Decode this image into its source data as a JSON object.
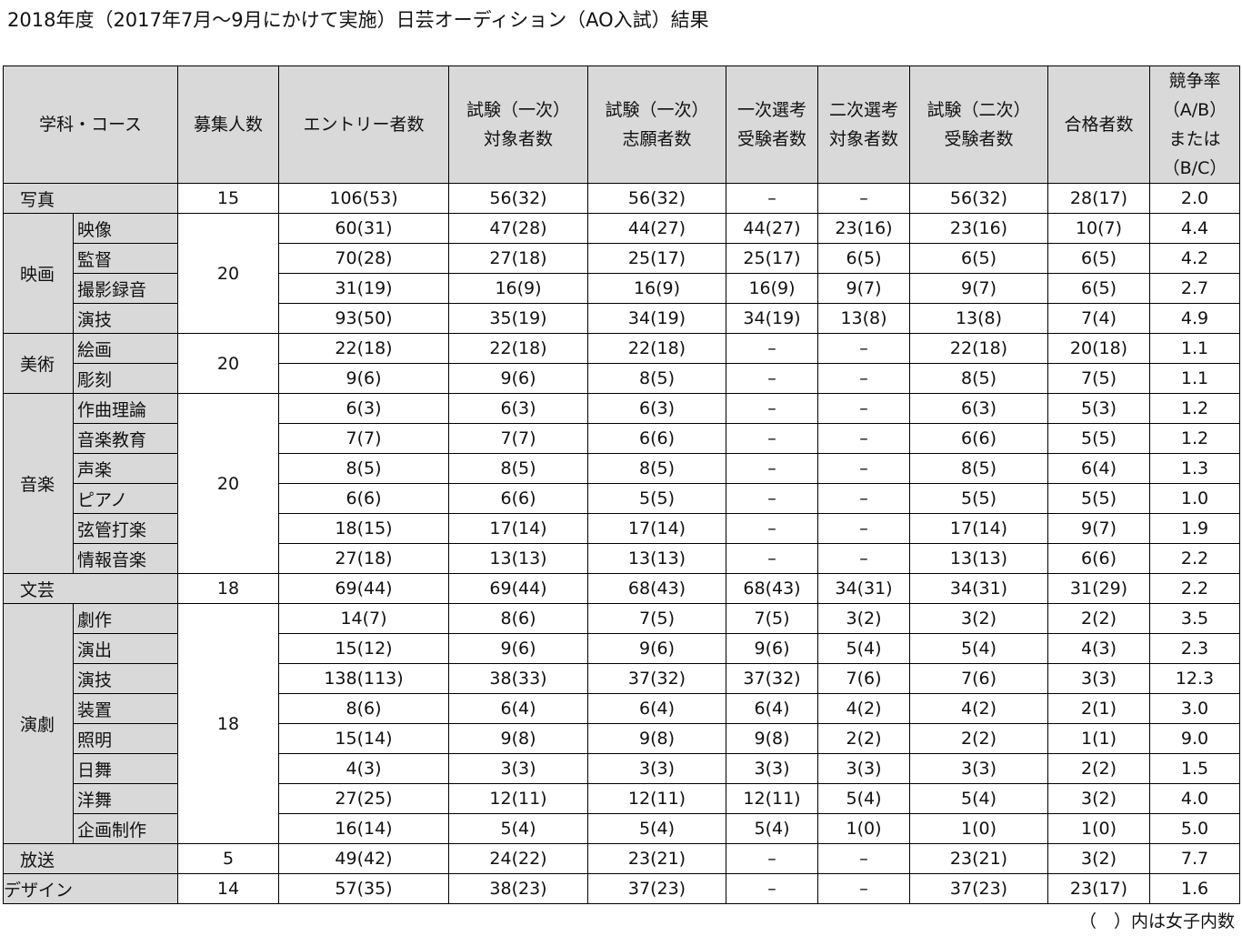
{
  "title": "2018年度（2017年7月～9月にかけて実施）日芸オーディション（AO入試）結果",
  "headers": {
    "dept": "学科・コース",
    "quota": "募集人数",
    "entry": "エントリー者数",
    "exam1_target": [
      "試験（一次）",
      "対象者数"
    ],
    "exam1_apply": [
      "試験（一次）",
      "志願者数"
    ],
    "sel1": [
      "一次選考",
      "受験者数"
    ],
    "sel2": [
      "二次選考",
      "対象者数"
    ],
    "exam2": [
      "試験（二次）",
      "受験者数"
    ],
    "passed": "合格者数",
    "ratio": [
      "競争率",
      "（A/B）",
      "または",
      "（B/C）"
    ]
  },
  "departments": [
    {
      "name": "写真",
      "quota": "15",
      "courses": [
        {
          "name": "",
          "cells": [
            "106(53)",
            "56(32)",
            "56(32)",
            "–",
            "–",
            "56(32)",
            "28(17)",
            "2.0"
          ]
        }
      ]
    },
    {
      "name": "映画",
      "quota": "20",
      "courses": [
        {
          "name": "映像",
          "cells": [
            "60(31)",
            "47(28)",
            "44(27)",
            "44(27)",
            "23(16)",
            "23(16)",
            "10(7)",
            "4.4"
          ]
        },
        {
          "name": "監督",
          "cells": [
            "70(28)",
            "27(18)",
            "25(17)",
            "25(17)",
            "6(5)",
            "6(5)",
            "6(5)",
            "4.2"
          ]
        },
        {
          "name": "撮影録音",
          "cells": [
            "31(19)",
            "16(9)",
            "16(9)",
            "16(9)",
            "9(7)",
            "9(7)",
            "6(5)",
            "2.7"
          ]
        },
        {
          "name": "演技",
          "cells": [
            "93(50)",
            "35(19)",
            "34(19)",
            "34(19)",
            "13(8)",
            "13(8)",
            "7(4)",
            "4.9"
          ]
        }
      ]
    },
    {
      "name": "美術",
      "quota": "20",
      "courses": [
        {
          "name": "絵画",
          "cells": [
            "22(18)",
            "22(18)",
            "22(18)",
            "–",
            "–",
            "22(18)",
            "20(18)",
            "1.1"
          ]
        },
        {
          "name": "彫刻",
          "cells": [
            "9(6)",
            "9(6)",
            "8(5)",
            "–",
            "–",
            "8(5)",
            "7(5)",
            "1.1"
          ]
        }
      ]
    },
    {
      "name": "音楽",
      "quota": "20",
      "courses": [
        {
          "name": "作曲理論",
          "cells": [
            "6(3)",
            "6(3)",
            "6(3)",
            "–",
            "–",
            "6(3)",
            "5(3)",
            "1.2"
          ]
        },
        {
          "name": "音楽教育",
          "cells": [
            "7(7)",
            "7(7)",
            "6(6)",
            "–",
            "–",
            "6(6)",
            "5(5)",
            "1.2"
          ]
        },
        {
          "name": "声楽",
          "cells": [
            "8(5)",
            "8(5)",
            "8(5)",
            "–",
            "–",
            "8(5)",
            "6(4)",
            "1.3"
          ]
        },
        {
          "name": "ピアノ",
          "cells": [
            "6(6)",
            "6(6)",
            "5(5)",
            "–",
            "–",
            "5(5)",
            "5(5)",
            "1.0"
          ]
        },
        {
          "name": "弦管打楽",
          "cells": [
            "18(15)",
            "17(14)",
            "17(14)",
            "–",
            "–",
            "17(14)",
            "9(7)",
            "1.9"
          ]
        },
        {
          "name": "情報音楽",
          "cells": [
            "27(18)",
            "13(13)",
            "13(13)",
            "–",
            "–",
            "13(13)",
            "6(6)",
            "2.2"
          ]
        }
      ]
    },
    {
      "name": "文芸",
      "quota": "18",
      "courses": [
        {
          "name": "",
          "cells": [
            "69(44)",
            "69(44)",
            "68(43)",
            "68(43)",
            "34(31)",
            "34(31)",
            "31(29)",
            "2.2"
          ]
        }
      ]
    },
    {
      "name": "演劇",
      "quota": "18",
      "courses": [
        {
          "name": "劇作",
          "cells": [
            "14(7)",
            "8(6)",
            "7(5)",
            "7(5)",
            "3(2)",
            "3(2)",
            "2(2)",
            "3.5"
          ]
        },
        {
          "name": "演出",
          "cells": [
            "15(12)",
            "9(6)",
            "9(6)",
            "9(6)",
            "5(4)",
            "5(4)",
            "4(3)",
            "2.3"
          ]
        },
        {
          "name": "演技",
          "cells": [
            "138(113)",
            "38(33)",
            "37(32)",
            "37(32)",
            "7(6)",
            "7(6)",
            "3(3)",
            "12.3"
          ]
        },
        {
          "name": "装置",
          "cells": [
            "8(6)",
            "6(4)",
            "6(4)",
            "6(4)",
            "4(2)",
            "4(2)",
            "2(1)",
            "3.0"
          ]
        },
        {
          "name": "照明",
          "cells": [
            "15(14)",
            "9(8)",
            "9(8)",
            "9(8)",
            "2(2)",
            "2(2)",
            "1(1)",
            "9.0"
          ]
        },
        {
          "name": "日舞",
          "cells": [
            "4(3)",
            "3(3)",
            "3(3)",
            "3(3)",
            "3(3)",
            "3(3)",
            "2(2)",
            "1.5"
          ]
        },
        {
          "name": "洋舞",
          "cells": [
            "27(25)",
            "12(11)",
            "12(11)",
            "12(11)",
            "5(4)",
            "5(4)",
            "3(2)",
            "4.0"
          ]
        },
        {
          "name": "企画制作",
          "cells": [
            "16(14)",
            "5(4)",
            "5(4)",
            "5(4)",
            "1(0)",
            "1(0)",
            "1(0)",
            "5.0"
          ]
        }
      ]
    },
    {
      "name": "放送",
      "quota": "5",
      "courses": [
        {
          "name": "",
          "cells": [
            "49(42)",
            "24(22)",
            "23(21)",
            "–",
            "–",
            "23(21)",
            "3(2)",
            "7.7"
          ]
        }
      ]
    },
    {
      "name": "デザイン",
      "quota": "14",
      "courses": [
        {
          "name": "",
          "cells": [
            "57(35)",
            "38(23)",
            "37(23)",
            "–",
            "–",
            "37(23)",
            "23(17)",
            "1.6"
          ]
        }
      ]
    }
  ],
  "note": "（　）内は女子内数"
}
